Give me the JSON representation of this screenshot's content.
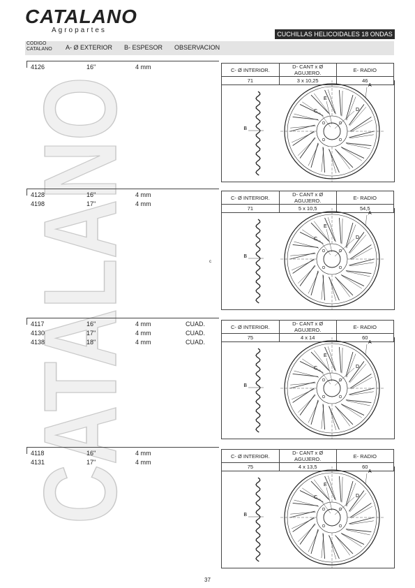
{
  "brand": {
    "name": "CATALANO",
    "subtitle": "Agropartes",
    "watermark": "CATALANO"
  },
  "banner": "CUCHILLAS HELICOIDALES 18 ONDAS",
  "header": {
    "codigo_line1": "CODIGO",
    "codigo_line2": "CATALANO",
    "col_a": "A- Ø EXTERIOR",
    "col_b": "B- ESPESOR",
    "col_obs": "OBSERVACION"
  },
  "spec_headers": {
    "c": "C- Ø INTERIOR.",
    "d": "D- CANT x Ø AGUJERO.",
    "e": "E- RADIO"
  },
  "diagram_labels": {
    "a": "A",
    "b": "B",
    "c": "C",
    "d": "D",
    "e": "E"
  },
  "stray_mark": "c",
  "sections": [
    {
      "rows": [
        {
          "code": "4126",
          "diameter": "16\"",
          "thickness": "4 mm",
          "obs": ""
        }
      ],
      "spec": {
        "c": "71",
        "d": "3 x 10,25",
        "e": "46"
      }
    },
    {
      "rows": [
        {
          "code": "4128",
          "diameter": "16\"",
          "thickness": "4 mm",
          "obs": ""
        },
        {
          "code": "4198",
          "diameter": "17\"",
          "thickness": "4 mm",
          "obs": ""
        }
      ],
      "spec": {
        "c": "71",
        "d": "5 x 10,5",
        "e": "54,5"
      }
    },
    {
      "rows": [
        {
          "code": "4117",
          "diameter": "16\"",
          "thickness": "4 mm",
          "obs": "CUAD."
        },
        {
          "code": "4130",
          "diameter": "17\"",
          "thickness": "4 mm",
          "obs": "CUAD."
        },
        {
          "code": "4138",
          "diameter": "18\"",
          "thickness": "4 mm",
          "obs": "CUAD."
        }
      ],
      "spec": {
        "c": "75",
        "d": "4 x 14",
        "e": "60"
      }
    },
    {
      "rows": [
        {
          "code": "4118",
          "diameter": "16\"",
          "thickness": "4 mm",
          "obs": ""
        },
        {
          "code": "4131",
          "diameter": "17\"",
          "thickness": "4 mm",
          "obs": ""
        }
      ],
      "spec": {
        "c": "75",
        "d": "4 x 13,5",
        "e": "60"
      }
    }
  ],
  "page_number": "37"
}
